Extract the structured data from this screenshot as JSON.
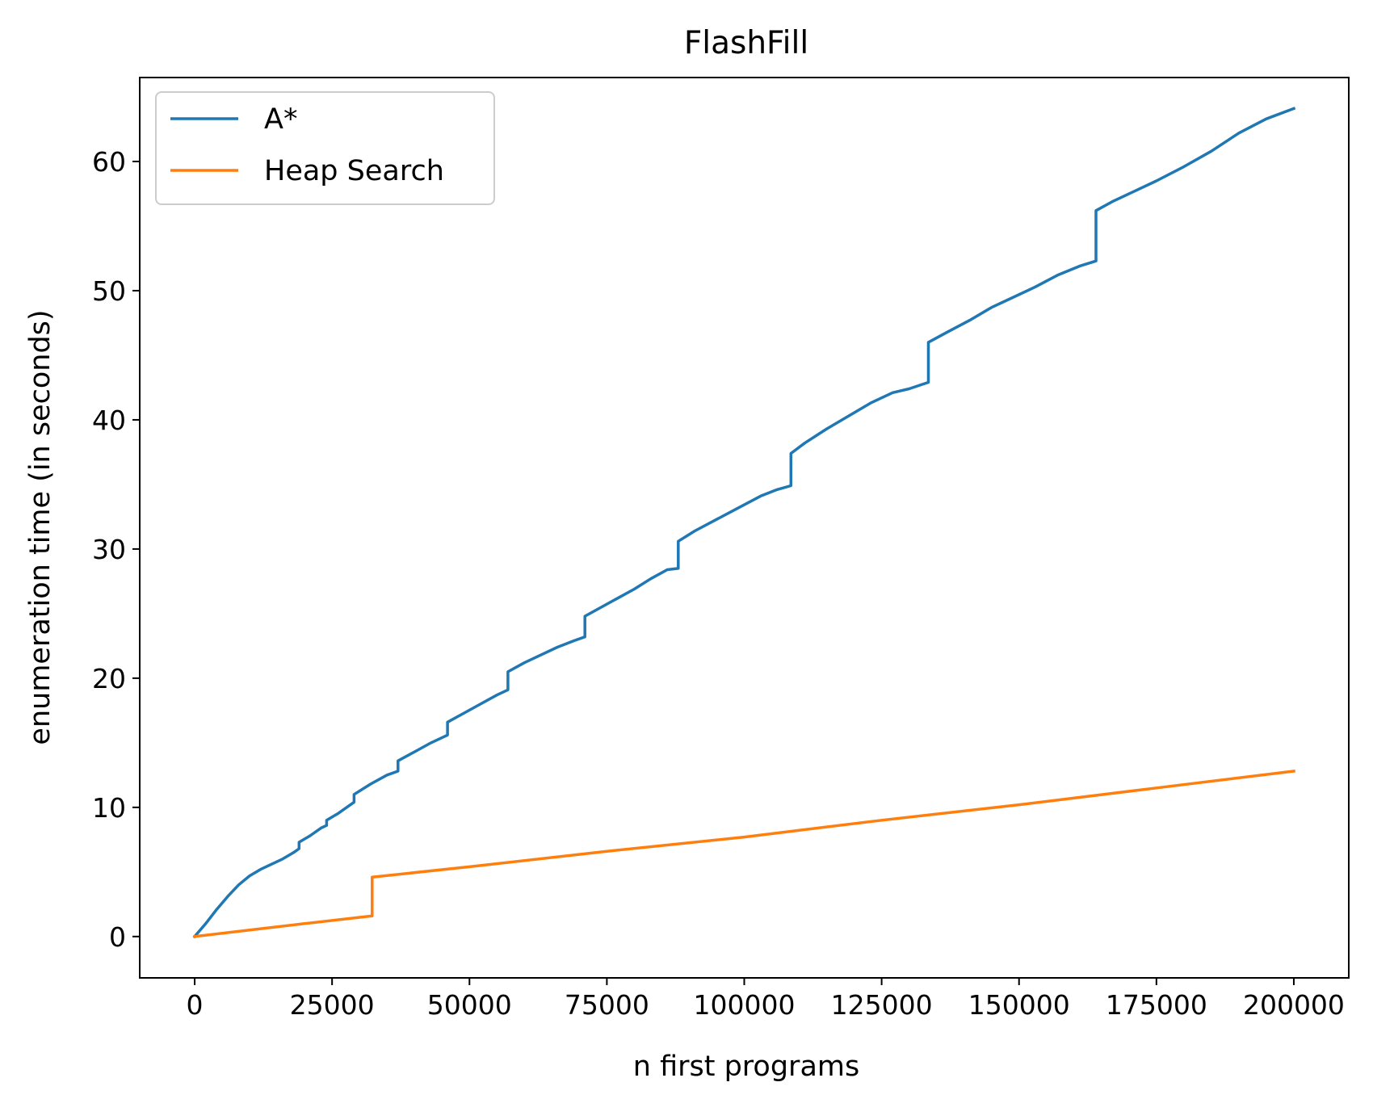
{
  "chart_data": {
    "type": "line",
    "title": "FlashFill",
    "xlabel": "n first programs",
    "ylabel": "enumeration time (in seconds)",
    "xlim": [
      -10000,
      210000
    ],
    "ylim": [
      -3.2,
      66.5
    ],
    "xticks": [
      0,
      25000,
      50000,
      75000,
      100000,
      125000,
      150000,
      175000,
      200000
    ],
    "yticks": [
      0,
      10,
      20,
      30,
      40,
      50,
      60
    ],
    "grid": false,
    "legend_position": "upper left",
    "series": [
      {
        "name": "A*",
        "color": "#1f77b4",
        "x": [
          0,
          2000,
          4000,
          6000,
          8000,
          10000,
          12000,
          14000,
          16000,
          18000,
          19000,
          19000,
          21000,
          23000,
          24000,
          24000,
          26000,
          28000,
          29000,
          29000,
          32000,
          35000,
          37000,
          37000,
          40000,
          43000,
          46000,
          46000,
          49000,
          52000,
          55000,
          57000,
          57000,
          60000,
          63000,
          66000,
          69000,
          71000,
          71000,
          74000,
          77000,
          80000,
          83000,
          86000,
          88000,
          88000,
          91000,
          95000,
          99000,
          103000,
          106000,
          108500,
          108500,
          111000,
          115000,
          119000,
          123000,
          127000,
          130000,
          133500,
          133500,
          137000,
          141000,
          145000,
          149000,
          153000,
          157000,
          161000,
          164000,
          164000,
          167000,
          171000,
          175000,
          180000,
          185000,
          190000,
          195000,
          200000
        ],
        "y": [
          0,
          1.0,
          2.1,
          3.1,
          4.0,
          4.7,
          5.2,
          5.6,
          6.0,
          6.5,
          6.8,
          7.3,
          7.8,
          8.4,
          8.6,
          9.0,
          9.5,
          10.1,
          10.4,
          11.0,
          11.8,
          12.5,
          12.8,
          13.6,
          14.3,
          15.0,
          15.6,
          16.6,
          17.3,
          18.0,
          18.7,
          19.1,
          20.5,
          21.2,
          21.8,
          22.4,
          22.9,
          23.2,
          24.8,
          25.5,
          26.2,
          26.9,
          27.7,
          28.4,
          28.5,
          30.6,
          31.4,
          32.3,
          33.2,
          34.1,
          34.6,
          34.9,
          37.4,
          38.2,
          39.3,
          40.3,
          41.3,
          42.1,
          42.4,
          42.9,
          46.0,
          46.8,
          47.7,
          48.7,
          49.5,
          50.3,
          51.2,
          51.9,
          52.3,
          56.2,
          56.9,
          57.7,
          58.5,
          59.6,
          60.8,
          62.2,
          63.3,
          64.1
        ]
      },
      {
        "name": "Heap Search",
        "color": "#ff7f0e",
        "x": [
          0,
          10000,
          20000,
          32300,
          32300,
          50000,
          75000,
          100000,
          125000,
          150000,
          175000,
          200000
        ],
        "y": [
          0,
          0.5,
          1.0,
          1.6,
          4.6,
          5.4,
          6.6,
          7.7,
          9.0,
          10.2,
          11.5,
          12.8
        ]
      }
    ]
  }
}
